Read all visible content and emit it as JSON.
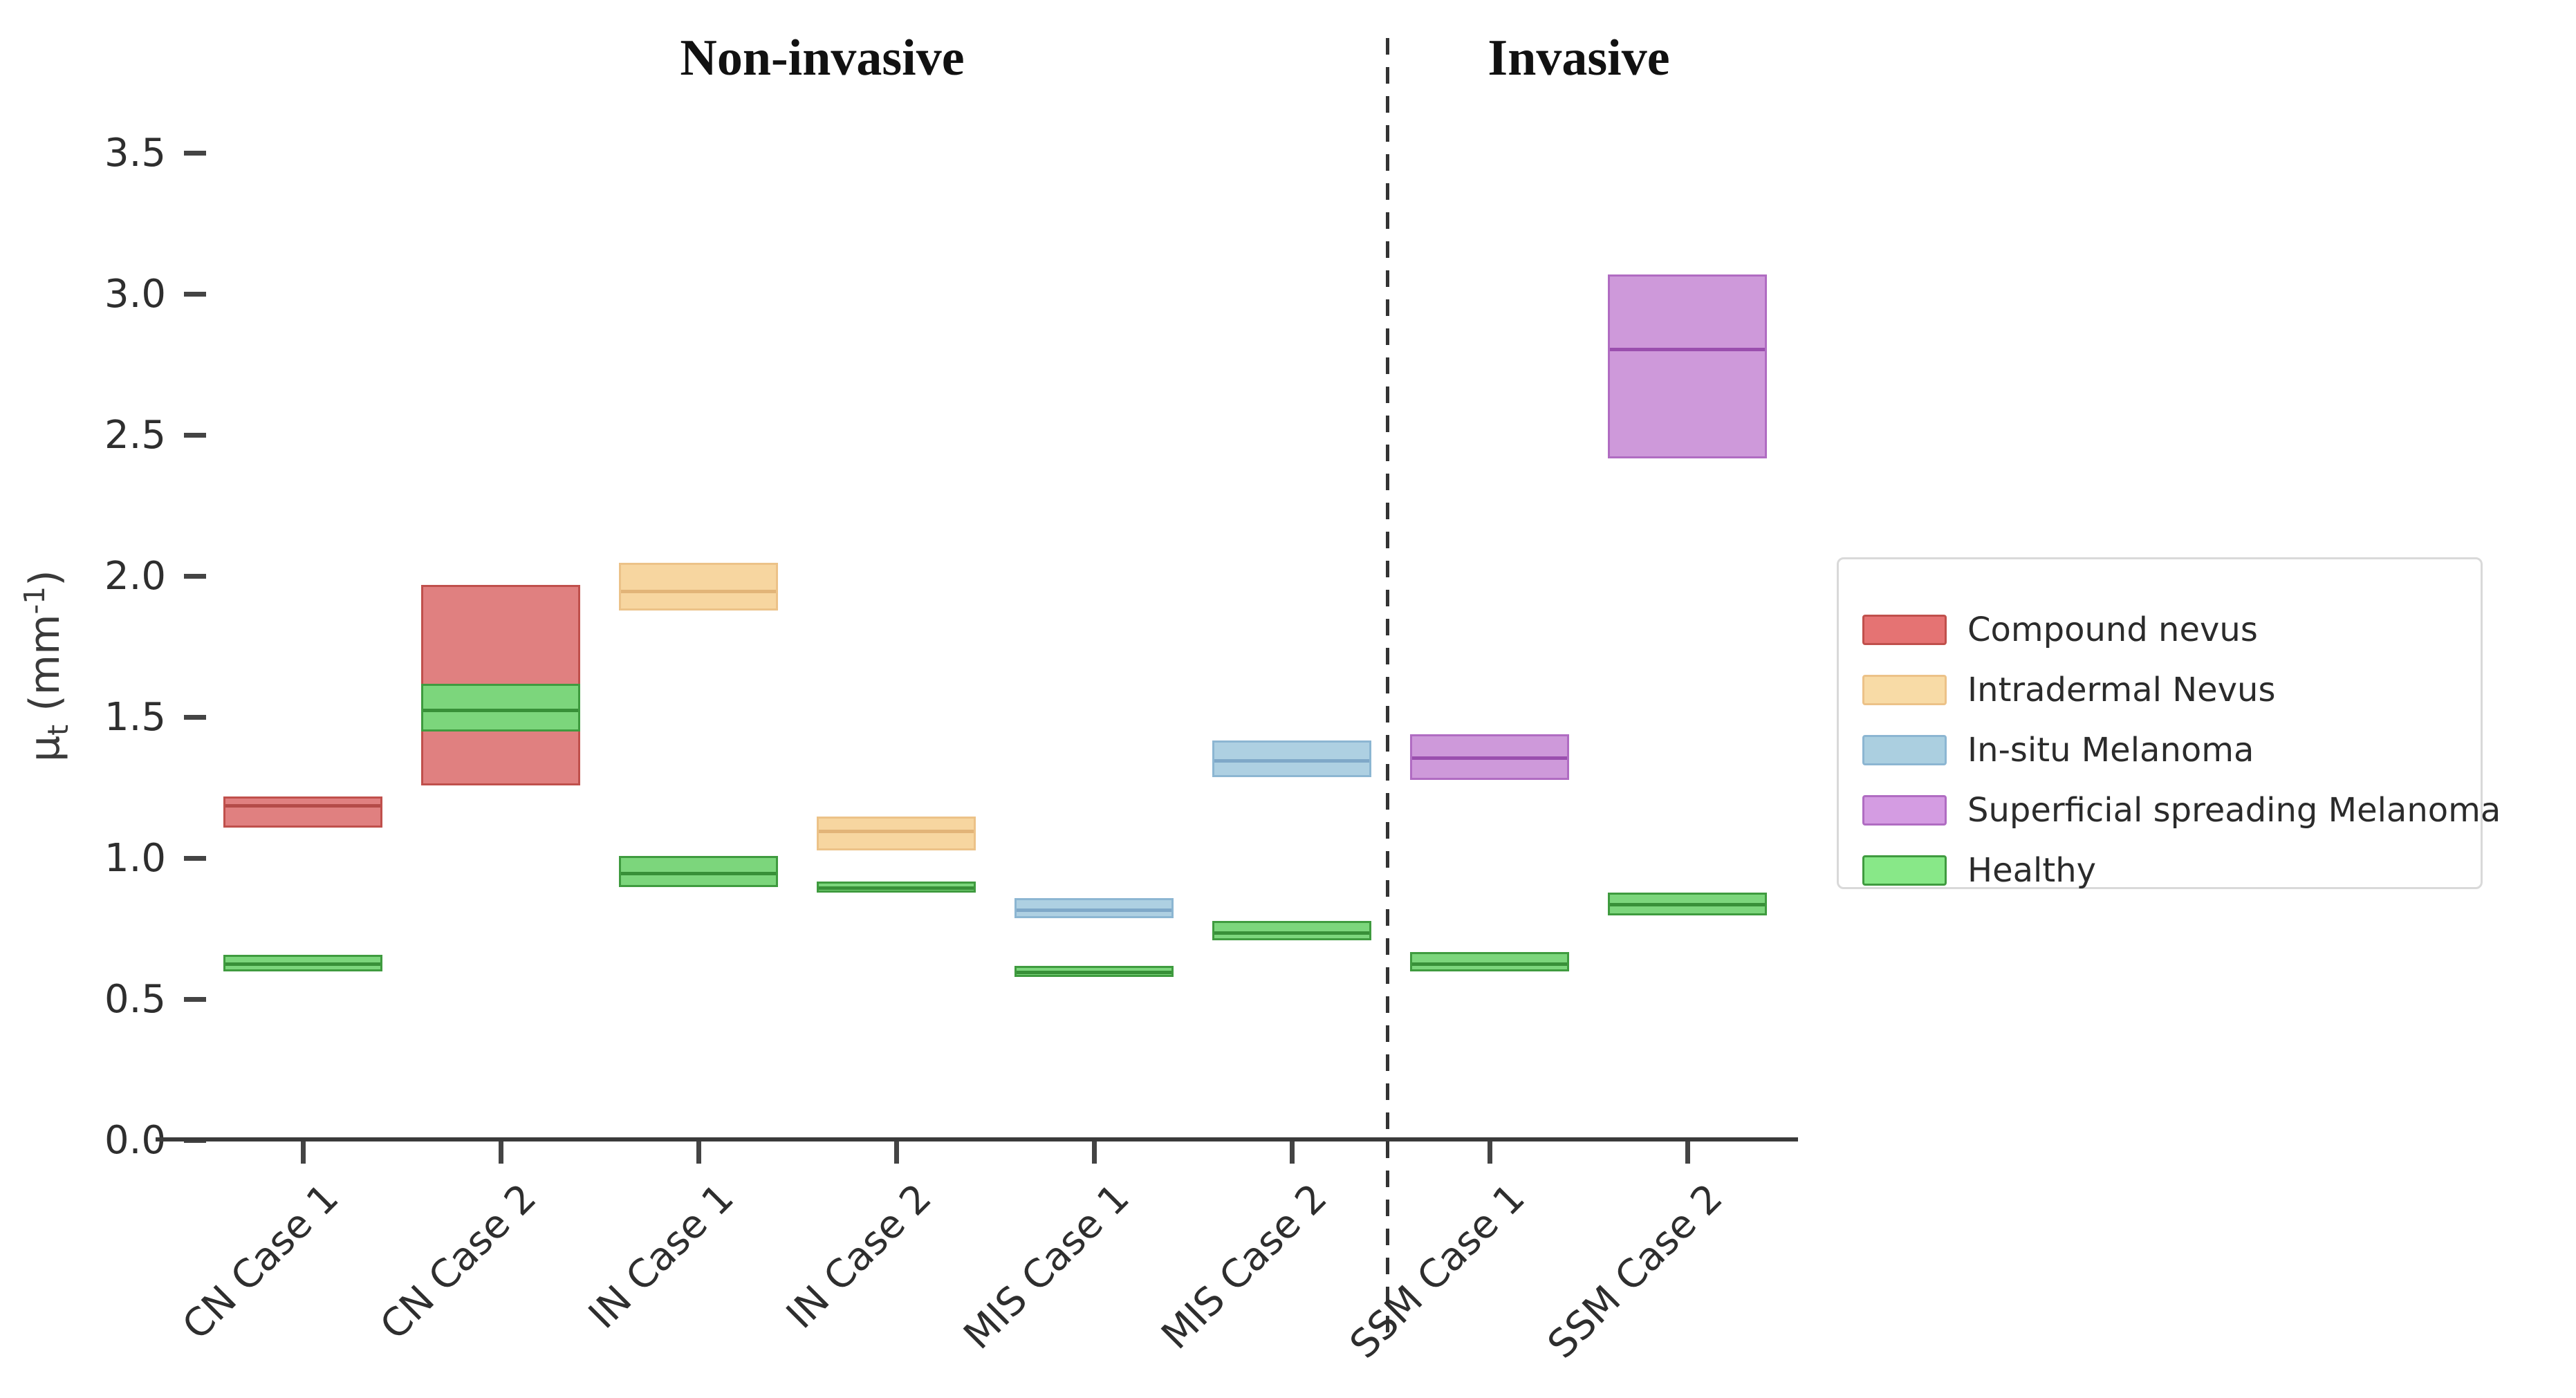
{
  "figure": {
    "background": "#ffffff"
  },
  "chart_data": {
    "type": "box",
    "title": "",
    "sections": [
      {
        "label": "Non-invasive",
        "categories": [
          "CN Case 1",
          "CN Case 2",
          "IN Case 1",
          "IN Case 2",
          "MIS Case 1",
          "MIS Case 2"
        ]
      },
      {
        "label": "Invasive",
        "categories": [
          "SSM Case 1",
          "SSM Case 2"
        ]
      }
    ],
    "divider": {
      "between": [
        "MIS Case 2",
        "SSM Case 1"
      ],
      "style": "dashed-vertical-line"
    },
    "ylabel": {
      "prefix": "μ",
      "subscript": "t",
      "unit_open": " (mm",
      "exponent": "-1",
      "unit_close": ")"
    },
    "ylim": [
      0.0,
      3.72
    ],
    "yticks": [
      "0.0",
      "0.5",
      "1.0",
      "1.5",
      "2.0",
      "2.5",
      "3.0",
      "3.5"
    ],
    "grid": false,
    "categories": [
      "CN Case 1",
      "CN Case 2",
      "IN Case 1",
      "IN Case 2",
      "MIS Case 1",
      "MIS Case 2",
      "SSM Case 1",
      "SSM Case 2"
    ],
    "series": [
      {
        "name": "Compound nevus",
        "fill": "#e08080",
        "border": "#c0504c",
        "median_color": "#b44b48",
        "legend_fill": "#e57373",
        "boxes": [
          {
            "category": "CN Case 1",
            "q1": 1.11,
            "median": 1.19,
            "q3": 1.22
          },
          {
            "category": "CN Case 2",
            "q1": 1.26,
            "median": 1.5,
            "q3": 1.97
          }
        ]
      },
      {
        "name": "Intradermal Nevus",
        "fill": "#f7d6a0",
        "border": "#ecc288",
        "median_color": "#e2b478",
        "legend_fill": "#f8dba6",
        "boxes": [
          {
            "category": "IN Case 1",
            "q1": 1.88,
            "median": 1.95,
            "q3": 2.05
          },
          {
            "category": "IN Case 2",
            "q1": 1.03,
            "median": 1.1,
            "q3": 1.15
          }
        ]
      },
      {
        "name": "In-situ Melanoma",
        "fill": "#aed0e2",
        "border": "#8cb6d2",
        "median_color": "#7fa8c8",
        "legend_fill": "#abcfe0",
        "boxes": [
          {
            "category": "MIS Case 1",
            "q1": 0.79,
            "median": 0.82,
            "q3": 0.86
          },
          {
            "category": "MIS Case 2",
            "q1": 1.29,
            "median": 1.35,
            "q3": 1.42
          }
        ]
      },
      {
        "name": "Superficial spreading Melanoma",
        "fill": "#ce99da",
        "border": "#b06cc2",
        "median_color": "#9a4fae",
        "legend_fill": "#d49ce2",
        "boxes": [
          {
            "category": "SSM Case 1",
            "q1": 1.28,
            "median": 1.36,
            "q3": 1.44
          },
          {
            "category": "SSM Case 2",
            "q1": 2.42,
            "median": 2.81,
            "q3": 3.07
          }
        ]
      },
      {
        "name": "Healthy",
        "fill": "#7cd67c",
        "border": "#3f9b3f",
        "median_color": "#389038",
        "legend_fill": "#88e888",
        "boxes": [
          {
            "category": "CN Case 1",
            "q1": 0.6,
            "median": 0.63,
            "q3": 0.66
          },
          {
            "category": "CN Case 2",
            "q1": 1.45,
            "median": 1.53,
            "q3": 1.62
          },
          {
            "category": "IN Case 1",
            "q1": 0.9,
            "median": 0.95,
            "q3": 1.01
          },
          {
            "category": "IN Case 2",
            "q1": 0.88,
            "median": 0.9,
            "q3": 0.92
          },
          {
            "category": "MIS Case 1",
            "q1": 0.58,
            "median": 0.6,
            "q3": 0.62
          },
          {
            "category": "MIS Case 2",
            "q1": 0.71,
            "median": 0.74,
            "q3": 0.78
          },
          {
            "category": "SSM Case 1",
            "q1": 0.6,
            "median": 0.63,
            "q3": 0.67
          },
          {
            "category": "SSM Case 2",
            "q1": 0.8,
            "median": 0.84,
            "q3": 0.88
          }
        ]
      }
    ],
    "legend": {
      "position": "right",
      "entries": [
        "Compound nevus",
        "Intradermal Nevus",
        "In-situ Melanoma",
        "Superficial spreading Melanoma",
        "Healthy"
      ]
    }
  }
}
